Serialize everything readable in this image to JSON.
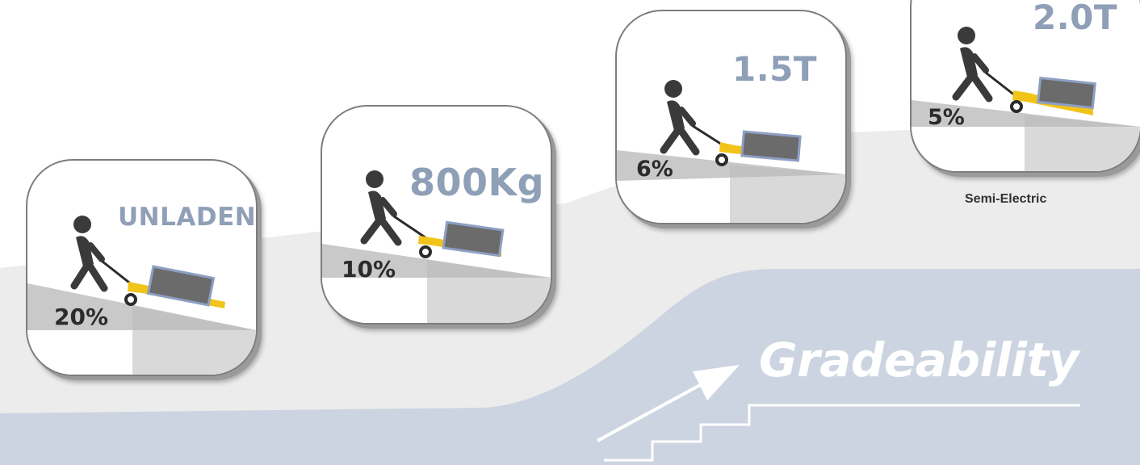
{
  "tiles": [
    {
      "load": "UNLADEN",
      "grade": "20%"
    },
    {
      "load": "800Kg",
      "grade": "10%"
    },
    {
      "load": "1.5T",
      "grade": "6%"
    },
    {
      "load": "2.0T",
      "grade": "5%",
      "caption": "Semi-Electric"
    }
  ],
  "heading": "Gradeability",
  "colors": {
    "load_label": "#8f9fb7",
    "pallet_truck": "#f2c419",
    "person": "#3a3a3a",
    "band_light": "#ececec",
    "band_blue": "#cdd4e1",
    "slope_grey": "#c6c6c6"
  },
  "icons": [
    "walking-person-icon",
    "pallet-truck-icon",
    "stairs-arrow-icon"
  ]
}
